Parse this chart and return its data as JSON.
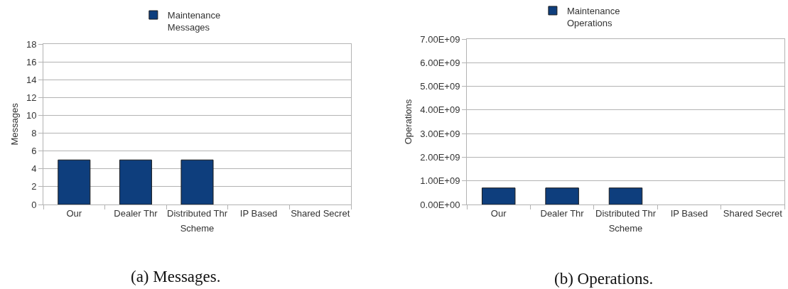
{
  "chart_data": [
    {
      "type": "bar",
      "categories": [
        "Our",
        "Dealer Thr",
        "Distributed Thr",
        "IP Based",
        "Shared Secret"
      ],
      "series": [
        {
          "name": "Maintenance Messages",
          "color": "#0e3e7d",
          "values": [
            5,
            5,
            5,
            null,
            null
          ]
        }
      ],
      "xlabel": "Scheme",
      "ylabel": "Messages",
      "ylim": [
        0,
        18
      ],
      "yticks": [
        0,
        2,
        4,
        6,
        8,
        10,
        12,
        14,
        16,
        18
      ],
      "grid": "y",
      "legend": "top",
      "annotations": [
        "(a) Messages."
      ]
    },
    {
      "type": "bar",
      "categories": [
        "Our",
        "Dealer Thr",
        "Distributed Thr",
        "IP Based",
        "Shared Secret"
      ],
      "series": [
        {
          "name": "Maintenance Operations",
          "color": "#0e3e7d",
          "values": [
            700000000,
            700000000,
            700000000,
            null,
            null
          ]
        }
      ],
      "xlabel": "Scheme",
      "ylabel": "Operations",
      "ylim": [
        0,
        7000000000
      ],
      "yticks": [
        {
          "value": 0,
          "label": "0.00E+00"
        },
        {
          "value": 1000000000,
          "label": "1.00E+09"
        },
        {
          "value": 2000000000,
          "label": "2.00E+09"
        },
        {
          "value": 3000000000,
          "label": "3.00E+09"
        },
        {
          "value": 4000000000,
          "label": "4.00E+09"
        },
        {
          "value": 5000000000,
          "label": "5.00E+09"
        },
        {
          "value": 6000000000,
          "label": "6.00E+09"
        },
        {
          "value": 7000000000,
          "label": "7.00E+09"
        }
      ],
      "grid": "y",
      "legend": "top",
      "annotations": [
        "(b) Operations."
      ]
    }
  ]
}
